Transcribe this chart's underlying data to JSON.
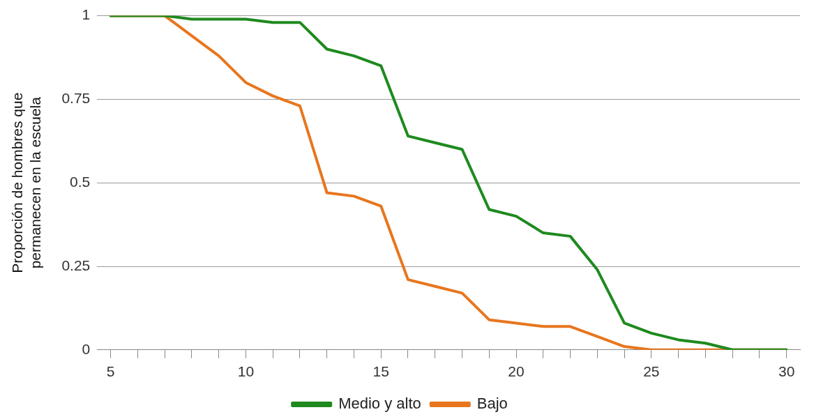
{
  "chart_data": {
    "type": "line",
    "ylabel": "Proporción de hombres que permanecen en la escuela",
    "x": [
      5,
      6,
      7,
      8,
      9,
      10,
      11,
      12,
      13,
      14,
      15,
      16,
      17,
      18,
      19,
      20,
      21,
      22,
      23,
      24,
      25,
      26,
      27,
      28,
      29,
      30
    ],
    "series": [
      {
        "name": "Medio y alto",
        "color": "#1e8a1e",
        "values": [
          1,
          1,
          1,
          0.99,
          0.99,
          0.99,
          0.98,
          0.98,
          0.9,
          0.88,
          0.85,
          0.64,
          0.62,
          0.6,
          0.42,
          0.4,
          0.35,
          0.34,
          0.24,
          0.08,
          0.05,
          0.03,
          0.02,
          0,
          0,
          0
        ]
      },
      {
        "name": "Bajo",
        "color": "#e8761e",
        "values": [
          1,
          1,
          1,
          0.94,
          0.88,
          0.8,
          0.76,
          0.73,
          0.47,
          0.46,
          0.43,
          0.21,
          0.19,
          0.17,
          0.09,
          0.08,
          0.07,
          0.07,
          0.04,
          0.01,
          0,
          0,
          0,
          0,
          0,
          0
        ]
      }
    ],
    "xlim": [
      4.5,
      30.5
    ],
    "xticks": [
      5,
      {
        "value": 6,
        "label": null
      },
      {
        "value": 7,
        "label": null
      },
      {
        "value": 8,
        "label": null
      },
      {
        "value": 9,
        "label": null
      },
      10,
      {
        "value": 11,
        "label": null
      },
      {
        "value": 12,
        "label": null
      },
      {
        "value": 13,
        "label": null
      },
      {
        "value": 14,
        "label": null
      },
      15,
      {
        "value": 16,
        "label": null
      },
      {
        "value": 17,
        "label": null
      },
      {
        "value": 18,
        "label": null
      },
      {
        "value": 19,
        "label": null
      },
      20,
      {
        "value": 21,
        "label": null
      },
      {
        "value": 22,
        "label": null
      },
      {
        "value": 23,
        "label": null
      },
      {
        "value": 24,
        "label": null
      },
      25,
      {
        "value": 26,
        "label": null
      },
      {
        "value": 27,
        "label": null
      },
      {
        "value": 28,
        "label": null
      },
      {
        "value": 29,
        "label": null
      },
      30
    ],
    "ylim": [
      0,
      1
    ],
    "yticks": [
      0,
      0.25,
      0.5,
      0.75,
      1
    ],
    "grid": "y",
    "legend": "bottom",
    "marker": "none",
    "line_style": "solid"
  }
}
